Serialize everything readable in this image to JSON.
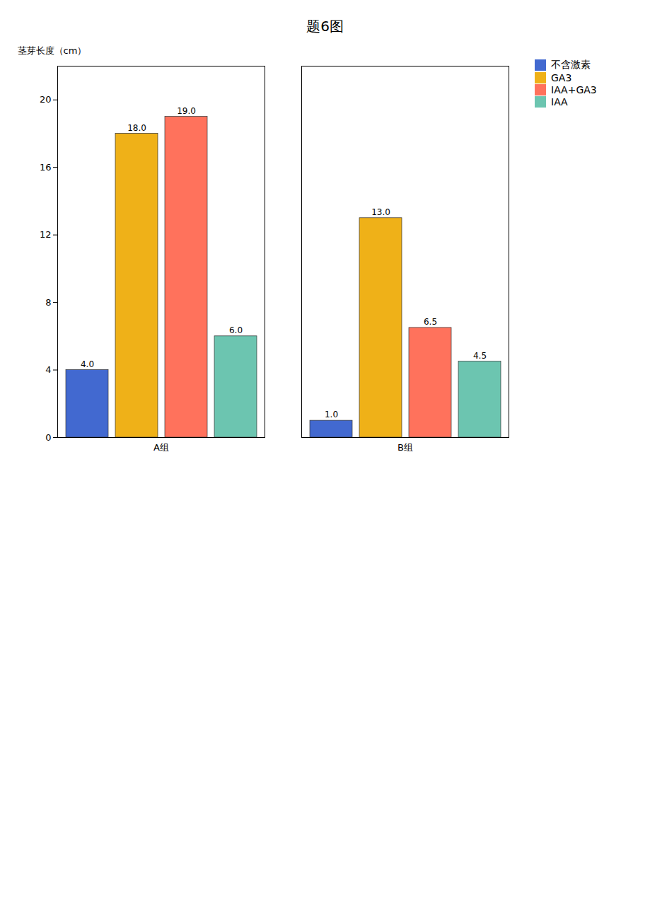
{
  "chart_data": {
    "type": "bar",
    "title": "题6图",
    "ylabel": "茎芽长度（cm）",
    "categories": [
      "A组",
      "B组"
    ],
    "series": [
      {
        "name": "不含激素",
        "values": [
          4.0,
          1.0
        ],
        "value_labels": [
          "4.0",
          "1.0"
        ]
      },
      {
        "name": "GA3",
        "values": [
          18.0,
          13.0
        ],
        "value_labels": [
          "18.0",
          "13.0"
        ]
      },
      {
        "name": "IAA+GA3",
        "values": [
          19.0,
          6.5
        ],
        "value_labels": [
          "19.0",
          "6.5"
        ]
      },
      {
        "name": "IAA",
        "values": [
          6.0,
          4.5
        ],
        "value_labels": [
          "6.0",
          "4.5"
        ]
      }
    ],
    "ylim": [
      0,
      22
    ],
    "yticks": [
      0,
      4,
      8,
      12,
      16,
      20
    ],
    "grid": false,
    "legend": "right",
    "data_labels": true
  }
}
